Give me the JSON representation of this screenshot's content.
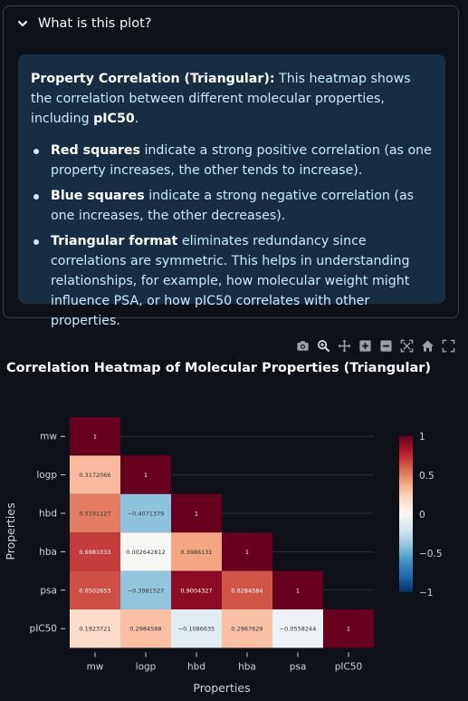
{
  "expander": {
    "title": "What is this plot?",
    "heading_bold": "Property Correlation (Triangular):",
    "heading_text": " This heatmap shows the correlation between different molecular properties, including ",
    "heading_bold2": "pIC50",
    "heading_end": ".",
    "bullets": [
      {
        "bold": "Red squares",
        "text": " indicate a strong positive correlation (as one property increases, the other tends to increase)."
      },
      {
        "bold": "Blue squares",
        "text": " indicate a strong negative correlation (as one increases, the other decreases)."
      },
      {
        "bold": "Triangular format",
        "text": " eliminates redundancy since correlations are symmetric. This helps in understanding relationships, for example, how molecular weight might influence PSA, or how pIC50 correlates with other properties."
      }
    ]
  },
  "modebar": [
    "camera-icon",
    "zoom-icon",
    "pan-icon",
    "zoom-in-icon",
    "zoom-out-icon",
    "autoscale-icon",
    "home-icon",
    "fullscreen-icon"
  ],
  "chart_data": {
    "type": "heatmap",
    "title": "Correlation Heatmap of Molecular Properties (Triangular)",
    "xlabel": "Properties",
    "ylabel": "Properties",
    "labels": [
      "mw",
      "logp",
      "hbd",
      "hba",
      "psa",
      "pIC50"
    ],
    "values": [
      [
        1
      ],
      [
        0.3172066,
        1
      ],
      [
        0.5191127,
        -0.4071379,
        1
      ],
      [
        0.6981033,
        0.002642812,
        0.3986131,
        1
      ],
      [
        0.6502653,
        -0.3981527,
        0.9004327,
        0.6284584,
        1
      ],
      [
        0.1923721,
        0.2984588,
        -0.1086635,
        0.2967629,
        -0.0558244,
        1
      ]
    ],
    "colorscale": "RdBu",
    "zlim": [
      -1,
      1
    ],
    "colorbar_ticks": [
      "1",
      "0.5",
      "0",
      "−0.5",
      "−1"
    ],
    "grid": true
  }
}
